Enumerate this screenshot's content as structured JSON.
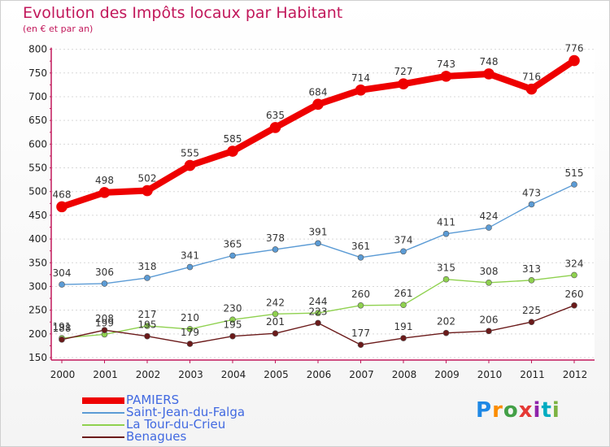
{
  "title": "Evolution des Impôts locaux par Habitant",
  "subtitle": "(en € et par an)",
  "logo": {
    "letters": [
      "P",
      "r",
      "o",
      "x",
      "i",
      "t",
      "i"
    ],
    "colors": [
      "#1e88e5",
      "#fb8c00",
      "#43a047",
      "#e53935",
      "#8e24aa",
      "#00acc1",
      "#7cb342"
    ]
  },
  "colors": {
    "title": "#c2185b",
    "axis": "#c2185b"
  },
  "chart_data": {
    "type": "line",
    "x": [
      "2000",
      "2001",
      "2002",
      "2003",
      "2004",
      "2005",
      "2006",
      "2007",
      "2008",
      "2009",
      "2010",
      "2011",
      "2012"
    ],
    "ylim": [
      150,
      800
    ],
    "yticks": [
      150,
      200,
      250,
      300,
      350,
      400,
      450,
      500,
      550,
      600,
      650,
      700,
      750,
      800
    ],
    "grid": "horizontal",
    "legend_position": "bottom-left",
    "series": [
      {
        "name": "PAMIERS",
        "color": "#ee0000",
        "values": [
          468,
          498,
          502,
          555,
          585,
          635,
          684,
          714,
          727,
          743,
          748,
          716,
          776
        ]
      },
      {
        "name": "Saint-Jean-du-Falga",
        "color": "#5b9bd5",
        "values": [
          304,
          306,
          318,
          341,
          365,
          378,
          391,
          361,
          374,
          411,
          424,
          473,
          515
        ]
      },
      {
        "name": "La Tour-du-Crieu",
        "color": "#8fd14f",
        "values": [
          191,
          199,
          217,
          210,
          230,
          242,
          244,
          260,
          261,
          315,
          308,
          313,
          324
        ]
      },
      {
        "name": "Benagues",
        "color": "#6b1a1a",
        "values": [
          188,
          208,
          195,
          179,
          195,
          201,
          223,
          177,
          191,
          202,
          206,
          225,
          260
        ]
      }
    ]
  }
}
